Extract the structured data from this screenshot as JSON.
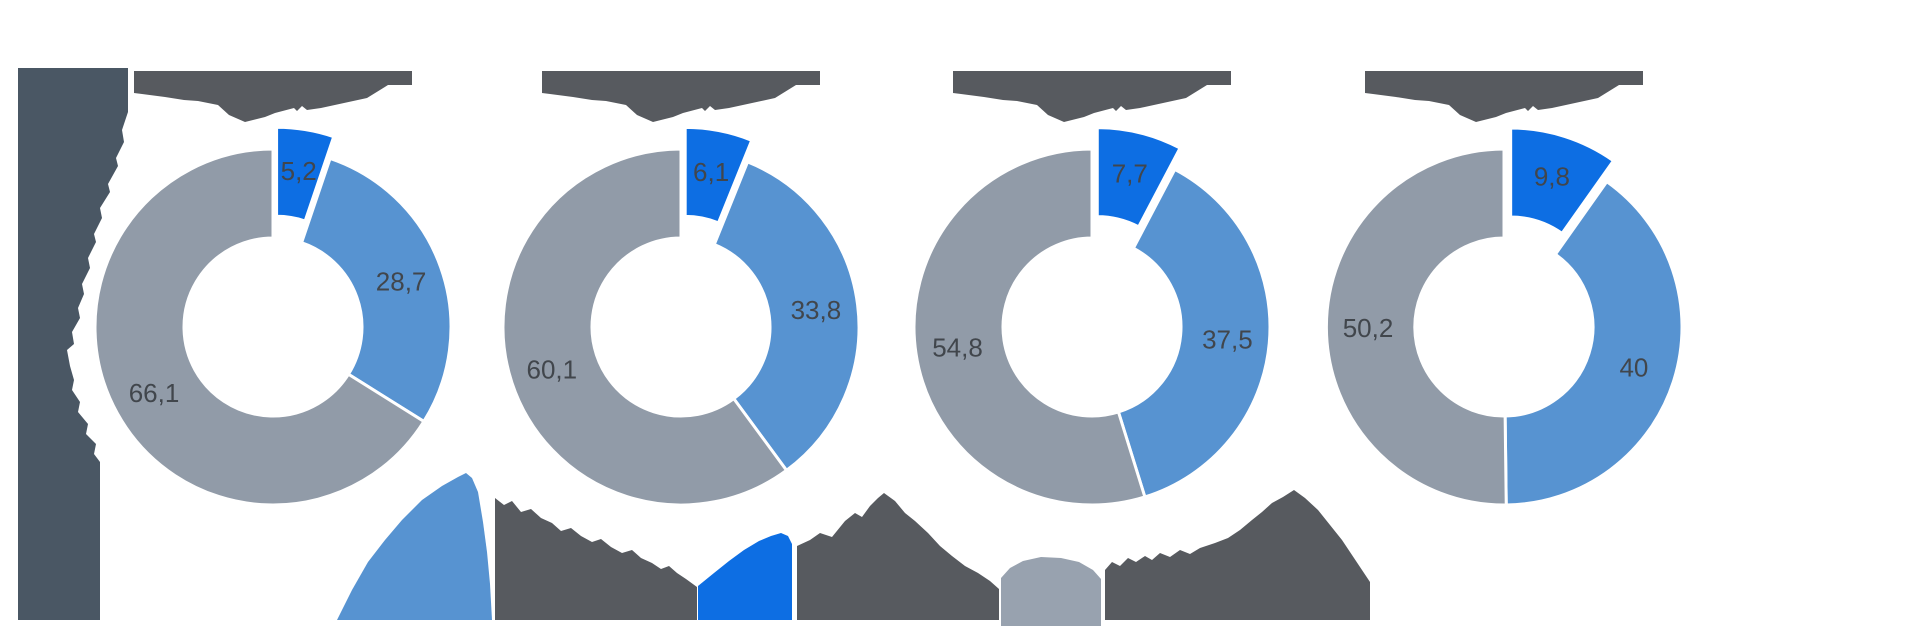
{
  "chart_data": {
    "type": "pie",
    "variant": "donut small-multiples (4 donuts), first slice exploded, titles and legend labels redacted",
    "decimal_separator": ",",
    "slice_series_order_clockwise_from_top": [
      "accent_blue",
      "light_blue",
      "gray"
    ],
    "palette": {
      "accent_blue": "#0D6EE3",
      "light_blue": "#5793D1",
      "gray": "#919BA8"
    },
    "charts": [
      {
        "title_redacted": true,
        "values": [
          5.2,
          28.7,
          66.1
        ],
        "labels": [
          "5,2",
          "28,7",
          "66,1"
        ]
      },
      {
        "title_redacted": true,
        "values": [
          6.1,
          33.8,
          60.1
        ],
        "labels": [
          "6,1",
          "33,8",
          "60,1"
        ]
      },
      {
        "title_redacted": true,
        "values": [
          7.7,
          37.5,
          54.8
        ],
        "labels": [
          "7,7",
          "37,5",
          "54,8"
        ]
      },
      {
        "title_redacted": true,
        "values": [
          9.8,
          40.0,
          50.2
        ],
        "labels": [
          "9,8",
          "40",
          "50,2"
        ]
      }
    ],
    "legend": {
      "position": "bottom",
      "items": [
        {
          "marker_color": "#5793D1",
          "label_redacted": true
        },
        {
          "marker_color": "#0D6EE3",
          "label_redacted": true
        },
        {
          "marker_color": "#98A2AF",
          "label_redacted": true
        }
      ]
    },
    "donut_hole_ratio": 0.5,
    "data_labels": {
      "color": "#41464C",
      "font_size": 26,
      "position": "inside mid-radius"
    }
  },
  "redactions": {
    "left_text_block_color": "#4A5764",
    "title_blocks_color": "#575A5F",
    "legend_text_color": "#575A5F"
  }
}
